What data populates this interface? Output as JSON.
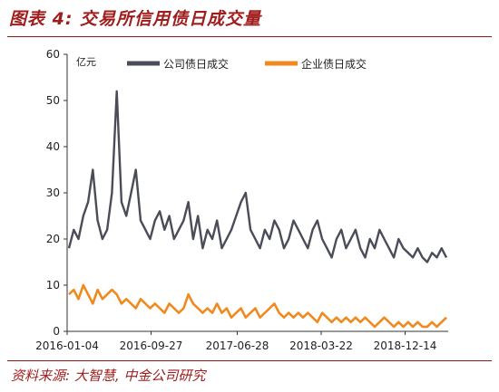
{
  "figure": {
    "title": "图表 4:  交易所信用债日成交量",
    "source": "资料来源: 大智慧, 中金公司研究"
  },
  "chart_data": {
    "type": "line",
    "unit_label": "亿元",
    "ylim": [
      0,
      60
    ],
    "yticks": [
      0,
      10,
      20,
      30,
      40,
      50,
      60
    ],
    "x_tick_labels": [
      "2016-01-04",
      "2016-09-27",
      "2017-06-28",
      "2018-03-22",
      "2018-12-14"
    ],
    "x_range": [
      "2016-01-04",
      "2019-04-30"
    ],
    "grid": false,
    "legend": "top-center",
    "series": [
      {
        "name": "公司债日成交",
        "color": "#4a4d57",
        "values": [
          18,
          22,
          20,
          25,
          28,
          35,
          24,
          20,
          22,
          30,
          52,
          28,
          25,
          30,
          35,
          24,
          22,
          20,
          24,
          26,
          22,
          25,
          20,
          22,
          24,
          28,
          20,
          25,
          18,
          22,
          20,
          24,
          18,
          20,
          22,
          25,
          28,
          30,
          22,
          20,
          18,
          22,
          20,
          24,
          22,
          18,
          20,
          24,
          22,
          20,
          18,
          22,
          24,
          20,
          18,
          16,
          20,
          22,
          18,
          20,
          22,
          18,
          16,
          20,
          18,
          22,
          20,
          18,
          16,
          20,
          18,
          17,
          16,
          18,
          16,
          15,
          17,
          16,
          18,
          16
        ]
      },
      {
        "name": "企业债日成交",
        "color": "#f08a1e",
        "values": [
          8,
          9,
          7,
          10,
          8,
          6,
          9,
          7,
          8,
          9,
          8,
          6,
          7,
          6,
          5,
          7,
          6,
          5,
          6,
          5,
          4,
          6,
          5,
          4,
          5,
          8,
          6,
          5,
          4,
          5,
          4,
          6,
          4,
          5,
          3,
          4,
          5,
          3,
          4,
          5,
          3,
          4,
          5,
          6,
          4,
          3,
          4,
          3,
          4,
          3,
          4,
          3,
          2,
          4,
          3,
          2,
          3,
          2,
          3,
          2,
          3,
          2,
          3,
          2,
          1,
          2,
          3,
          2,
          1,
          2,
          1,
          2,
          1,
          2,
          1,
          1,
          2,
          1,
          2,
          3
        ]
      }
    ]
  }
}
